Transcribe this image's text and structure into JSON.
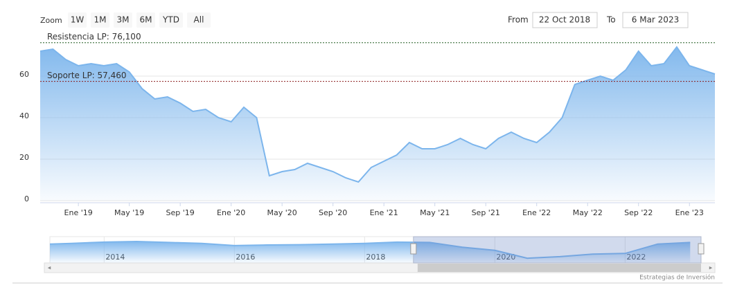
{
  "chart_data": {
    "type": "area",
    "zoom_label": "Zoom",
    "range_buttons": [
      "1W",
      "1M",
      "3M",
      "6M",
      "YTD",
      "All"
    ],
    "from_label": "From",
    "from_value": "22 Oct 2018",
    "to_label": "To",
    "to_value": "6 Mar 2023",
    "credit": "Estrategias de Inversión",
    "color": "#7cb5ec",
    "x": [
      "2018-10",
      "2018-11",
      "2018-12",
      "2019-01",
      "2019-02",
      "2019-03",
      "2019-04",
      "2019-05",
      "2019-06",
      "2019-07",
      "2019-08",
      "2019-09",
      "2019-10",
      "2019-11",
      "2019-12",
      "2020-01",
      "2020-02",
      "2020-03",
      "2020-04",
      "2020-05",
      "2020-06",
      "2020-07",
      "2020-08",
      "2020-09",
      "2020-10",
      "2020-11",
      "2020-12",
      "2021-01",
      "2021-02",
      "2021-03",
      "2021-04",
      "2021-05",
      "2021-06",
      "2021-07",
      "2021-08",
      "2021-09",
      "2021-10",
      "2021-11",
      "2021-12",
      "2022-01",
      "2022-02",
      "2022-03",
      "2022-04",
      "2022-05",
      "2022-06",
      "2022-07",
      "2022-08",
      "2022-09",
      "2022-10",
      "2022-11",
      "2022-12",
      "2023-01",
      "2023-02",
      "2023-03"
    ],
    "values": [
      72,
      73,
      68,
      65,
      66,
      65,
      66,
      62,
      54,
      49,
      50,
      47,
      43,
      44,
      40,
      38,
      45,
      40,
      12,
      14,
      15,
      18,
      16,
      14,
      11,
      9,
      16,
      19,
      22,
      28,
      25,
      25,
      27,
      30,
      27,
      25,
      30,
      33,
      30,
      28,
      33,
      40,
      56,
      58,
      60,
      58,
      63,
      72,
      65,
      66,
      74,
      65,
      63,
      61
    ],
    "xlim": [
      "2018-10",
      "2023-03"
    ],
    "xticks": [
      {
        "value": "2019-01",
        "label": "Ene '19"
      },
      {
        "value": "2019-05",
        "label": "May '19"
      },
      {
        "value": "2019-09",
        "label": "Sep '19"
      },
      {
        "value": "2020-01",
        "label": "Ene '20"
      },
      {
        "value": "2020-05",
        "label": "May '20"
      },
      {
        "value": "2020-09",
        "label": "Sep '20"
      },
      {
        "value": "2021-01",
        "label": "Ene '21"
      },
      {
        "value": "2021-05",
        "label": "May '21"
      },
      {
        "value": "2021-09",
        "label": "Sep '21"
      },
      {
        "value": "2022-01",
        "label": "Ene '22"
      },
      {
        "value": "2022-05",
        "label": "May '22"
      },
      {
        "value": "2022-09",
        "label": "Sep '22"
      },
      {
        "value": "2023-01",
        "label": "Ene '23"
      }
    ],
    "ylim": [
      0,
      79
    ],
    "yticks": [
      0,
      20,
      40,
      60
    ],
    "grid": true,
    "plot_lines": [
      {
        "value": 76.1,
        "label": "Resistencia LP: 76,100",
        "color": "#1f5c1f"
      },
      {
        "value": 57.46,
        "label": "Soporte LP: 57,460",
        "color": "#8b1a1a"
      }
    ],
    "navigator": {
      "x": [
        "2013-03",
        "2013-07",
        "2014-01",
        "2014-07",
        "2015-01",
        "2015-07",
        "2016-01",
        "2016-07",
        "2017-01",
        "2017-07",
        "2018-01",
        "2018-07",
        "2019-01",
        "2019-07",
        "2020-01",
        "2020-07",
        "2021-01",
        "2021-07",
        "2022-01",
        "2022-07",
        "2023-01"
      ],
      "values": [
        60,
        62,
        66,
        68,
        65,
        62,
        55,
        57,
        58,
        60,
        62,
        66,
        65,
        50,
        40,
        15,
        20,
        28,
        30,
        60,
        65
      ],
      "xlim": [
        "2013-03",
        "2023-03"
      ],
      "xticks": [
        {
          "value": "2014-01",
          "label": "2014"
        },
        {
          "value": "2016-01",
          "label": "2016"
        },
        {
          "value": "2018-01",
          "label": "2018"
        },
        {
          "value": "2020-01",
          "label": "2020"
        },
        {
          "value": "2022-01",
          "label": "2022"
        }
      ]
    }
  }
}
